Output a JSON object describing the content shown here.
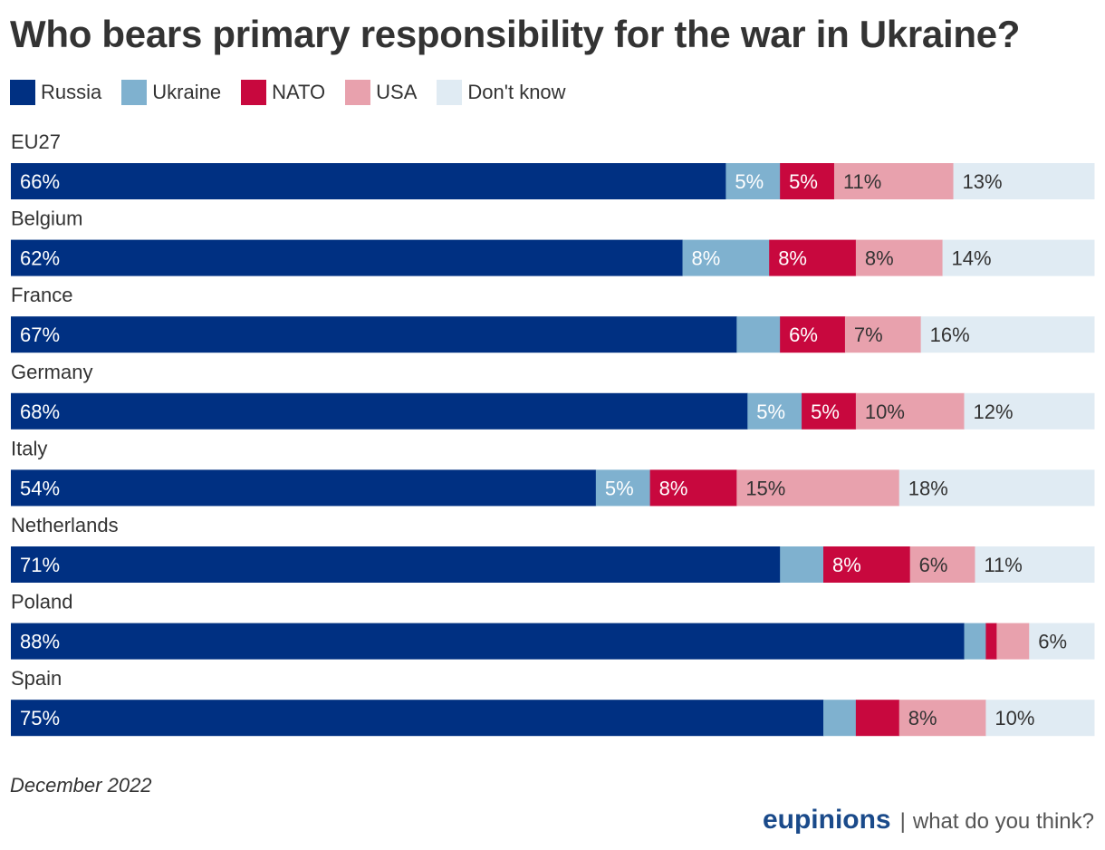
{
  "chart_data": {
    "type": "bar",
    "orientation": "horizontal",
    "stacked": true,
    "title": "Who bears primary responsibility for the war in Ukraine?",
    "categories": [
      "EU27",
      "Belgium",
      "France",
      "Germany",
      "Italy",
      "Netherlands",
      "Poland",
      "Spain"
    ],
    "series": [
      {
        "name": "Russia",
        "color": "#003082",
        "values": [
          66,
          62,
          67,
          68,
          54,
          71,
          88,
          75
        ]
      },
      {
        "name": "Ukraine",
        "color": "#7fb1cf",
        "values": [
          5,
          8,
          4,
          5,
          5,
          4,
          2,
          3
        ]
      },
      {
        "name": "NATO",
        "color": "#c8083e",
        "values": [
          5,
          8,
          6,
          5,
          8,
          8,
          1,
          4
        ]
      },
      {
        "name": "USA",
        "color": "#e8a1ad",
        "values": [
          11,
          8,
          7,
          10,
          15,
          6,
          3,
          8
        ]
      },
      {
        "name": "Don't know",
        "color": "#e0ebf3",
        "values": [
          13,
          14,
          16,
          12,
          18,
          11,
          6,
          10
        ]
      }
    ],
    "label_min": 5,
    "xlim": [
      0,
      100
    ],
    "legend_position": "top-left",
    "grid": false
  },
  "footer": {
    "note": "December 2022",
    "brand": "eupinions",
    "separator": "|",
    "tagline": "what do you think?"
  }
}
